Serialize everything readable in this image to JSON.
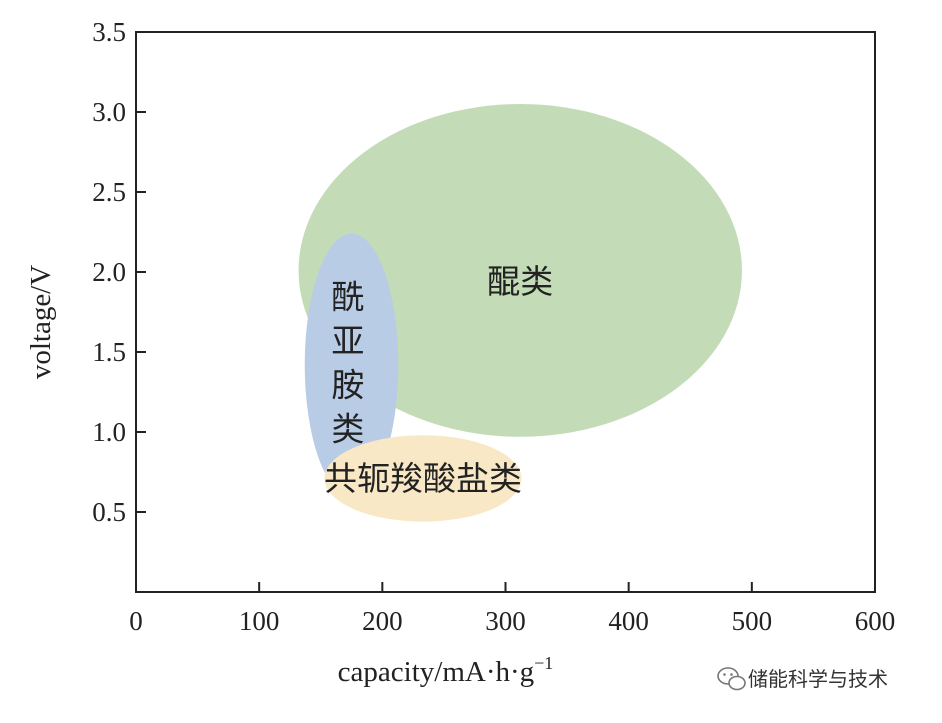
{
  "chart_data": {
    "type": "area",
    "xlabel_parts": {
      "main": "capacity/mA·h·g",
      "sup": "−1"
    },
    "ylabel": "voltage/V",
    "xlim": [
      0,
      600
    ],
    "ylim": [
      0.0,
      3.5
    ],
    "xticks": [
      0,
      100,
      200,
      300,
      400,
      500,
      600
    ],
    "yticks": [
      0.5,
      1.0,
      1.5,
      2.0,
      2.5,
      3.0,
      3.5
    ],
    "xtick_labels": [
      "0",
      "100",
      "200",
      "300",
      "400",
      "500",
      "600"
    ],
    "ytick_labels": [
      "0.5",
      "1.0",
      "1.5",
      "2.0",
      "2.5",
      "3.0",
      "3.5"
    ],
    "grid": false,
    "regions": [
      {
        "label": "醌类",
        "color": "#c3dcb7",
        "center": [
          312,
          2.01
        ],
        "radius": [
          180,
          1.04
        ],
        "label_at": [
          312,
          1.94
        ],
        "label_vertical": false
      },
      {
        "label": "酰亚胺类",
        "color": "#b8cce6",
        "center": [
          175,
          1.42
        ],
        "radius": [
          38,
          0.82
        ],
        "label_at": [
          172,
          1.43
        ],
        "label_vertical": true
      },
      {
        "label": "共轭羧酸盐类",
        "color": "#f8e8c5",
        "center": [
          233,
          0.71
        ],
        "radius": [
          80,
          0.27
        ],
        "label_at": [
          233,
          0.71
        ],
        "label_vertical": false
      }
    ]
  },
  "watermark": {
    "text": "储能科学与技术",
    "icon": "wechat-icon"
  }
}
